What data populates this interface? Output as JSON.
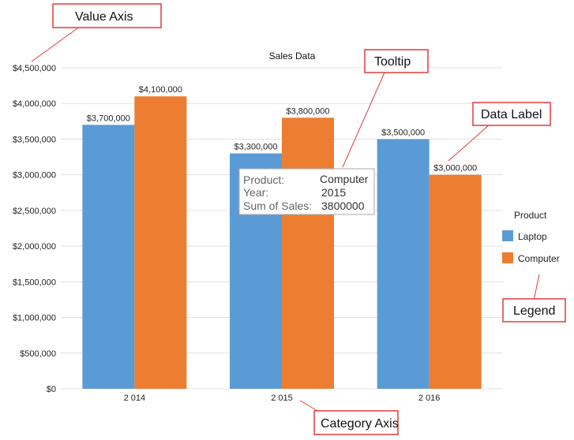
{
  "chart_data": {
    "type": "bar",
    "title": "Sales Data",
    "categories": [
      "2 014",
      "2 015",
      "2 016"
    ],
    "series": [
      {
        "name": "Laptop",
        "values": [
          3700000,
          3300000,
          3500000
        ],
        "color": "#5b9bd5"
      },
      {
        "name": "Computer",
        "values": [
          4100000,
          3800000,
          3000000
        ],
        "color": "#ed7d31"
      }
    ],
    "data_labels": [
      [
        "$3,700,000",
        "$3,300,000",
        "$3,500,000"
      ],
      [
        "$4,100,000",
        "$3,800,000",
        "$3,000,000"
      ]
    ],
    "y_ticks": [
      {
        "value": 0,
        "label": "$0"
      },
      {
        "value": 500000,
        "label": "$500,000"
      },
      {
        "value": 1000000,
        "label": "$1,000,000"
      },
      {
        "value": 1500000,
        "label": "$1,500,000"
      },
      {
        "value": 2000000,
        "label": "$2,000,000"
      },
      {
        "value": 2500000,
        "label": "$2,500,000"
      },
      {
        "value": 3000000,
        "label": "$3,000,000"
      },
      {
        "value": 3500000,
        "label": "$3,500,000"
      },
      {
        "value": 4000000,
        "label": "$4,000,000"
      },
      {
        "value": 4500000,
        "label": "$4,500,000"
      }
    ],
    "ylim": [
      0,
      4500000
    ],
    "xlabel": "",
    "ylabel": "",
    "grid": true,
    "legend": {
      "title": "Product",
      "placement": "right"
    },
    "tooltip": {
      "rows": [
        {
          "key": "Product:",
          "value": "Computer"
        },
        {
          "key": "Year:",
          "value": "2015"
        },
        {
          "key": "Sum of Sales:",
          "value": "3800000"
        }
      ]
    },
    "callouts": {
      "value_axis": "Value Axis",
      "tooltip": "Tooltip",
      "data_label": "Data Label",
      "legend": "Legend",
      "category_axis": "Category Axis"
    }
  },
  "colors": {
    "callout_border": "#e03c3c",
    "gridline": "#e0e0e0",
    "tooltip_border": "#aaaaaa"
  }
}
